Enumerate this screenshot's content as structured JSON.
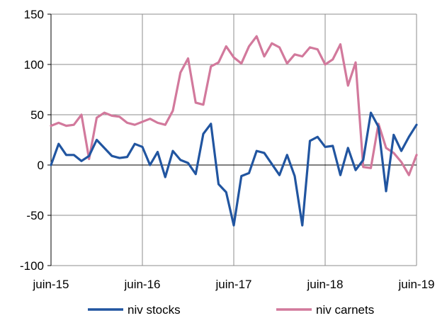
{
  "chart_data": {
    "type": "line",
    "title": "",
    "xlabel": "",
    "ylabel": "",
    "ylim": [
      -100,
      150
    ],
    "yticks": [
      -100,
      -50,
      0,
      50,
      100,
      150
    ],
    "ytick_labels": [
      "-100",
      "-50",
      "0",
      "50",
      "100",
      "150"
    ],
    "x_tick_labels": [
      "juin-15",
      "juin-16",
      "juin-17",
      "juin-18",
      "juin-19"
    ],
    "x_tick_indices": [
      0,
      12,
      24,
      36,
      48
    ],
    "x_count": 49,
    "grid": true,
    "legend_position": "bottom",
    "series": [
      {
        "name": "niv stocks",
        "color": "#2155a0",
        "values": [
          0,
          21,
          10,
          10,
          4,
          9,
          25,
          17,
          9,
          7,
          8,
          21,
          18,
          0,
          13,
          -12,
          14,
          5,
          2,
          -9,
          31,
          41,
          -19,
          -27,
          -60,
          -11,
          -8,
          14,
          12,
          1,
          -10,
          10,
          -11,
          -60,
          24,
          28,
          18,
          19,
          -10,
          17,
          -5,
          5,
          52,
          38,
          -26,
          30,
          14,
          28,
          40
        ]
      },
      {
        "name": "niv carnets",
        "color": "#d2799c",
        "values": [
          39,
          42,
          39,
          40,
          50,
          6,
          47,
          52,
          49,
          48,
          42,
          40,
          43,
          46,
          42,
          40,
          54,
          92,
          106,
          62,
          60,
          98,
          102,
          118,
          107,
          101,
          118,
          128,
          108,
          121,
          117,
          101,
          110,
          108,
          117,
          115,
          100,
          105,
          120,
          79,
          102,
          -2,
          -3,
          41,
          17,
          12,
          3,
          -10,
          10
        ]
      }
    ]
  }
}
